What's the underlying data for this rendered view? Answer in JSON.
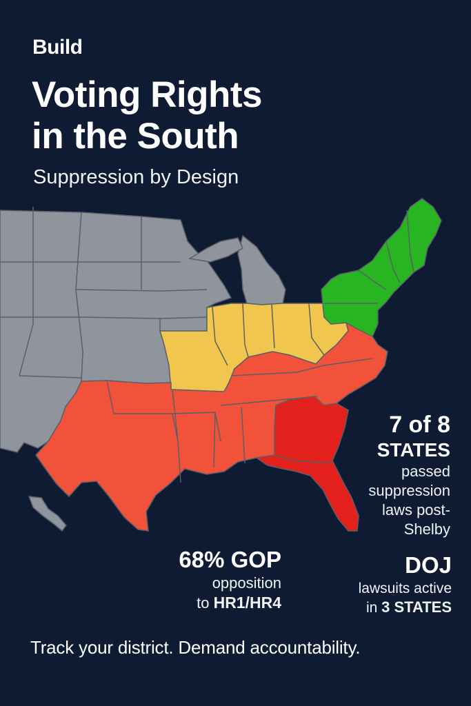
{
  "header": {
    "eyebrow": "Build",
    "title_line1": "Voting Rights",
    "title_line2": "in the South",
    "subtitle": "Suppression by Design"
  },
  "map": {
    "colors": {
      "background": "#0f1b33",
      "other_states": "#8f949d",
      "northeast": "#27b522",
      "midwest": "#f0c64e",
      "south": "#f2523a",
      "deep_south": "#e3201b",
      "borders": "#5a5f68"
    },
    "regions": {
      "northeast": "northeast-states",
      "midwest": "midwest-states",
      "south": "south-states",
      "deep_south": "georgia-florida"
    }
  },
  "stats": {
    "states": {
      "number": "7 of 8",
      "unit": "STATES",
      "line1": "passed",
      "line2": "suppression",
      "line3": "laws post-",
      "line4": "Shelby"
    },
    "gop": {
      "number": "68% GOP",
      "line1": "opposition",
      "line2_prefix": "to ",
      "line2_bold": "HR1/HR4"
    },
    "doj": {
      "title": "DOJ",
      "line1": "lawsuits active",
      "line2_prefix": "in ",
      "line2_bold": "3 STATES"
    }
  },
  "footer": {
    "text": "Track your district. Demand accountability."
  }
}
